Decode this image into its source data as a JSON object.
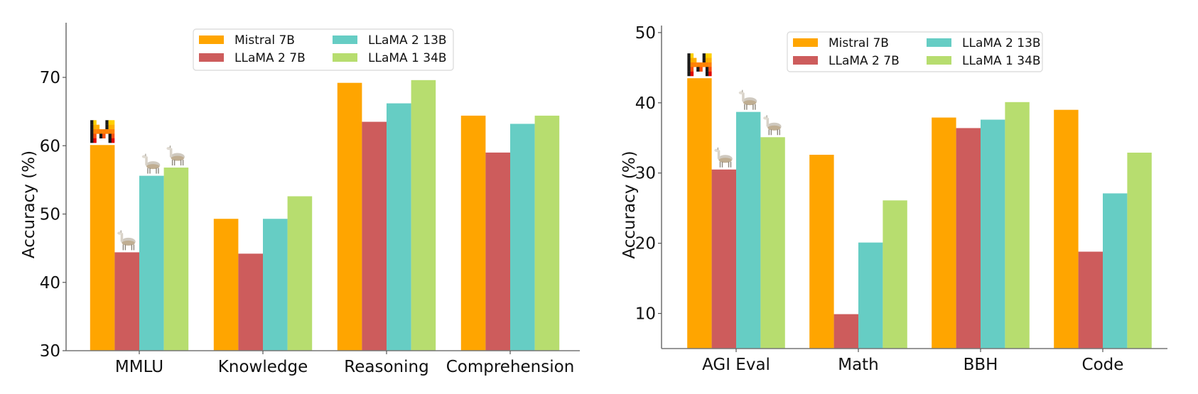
{
  "chart_data": [
    {
      "type": "bar",
      "title": "",
      "xlabel": "",
      "ylabel": "Accuracy (%)",
      "ylim": [
        30,
        78
      ],
      "yticks": [
        30,
        40,
        50,
        60,
        70
      ],
      "grid": false,
      "legend_position": "top-center",
      "categories": [
        "MMLU",
        "Knowledge",
        "Reasoning",
        "Comprehension"
      ],
      "series": [
        {
          "name": "Mistral 7B",
          "color": "#FFA500",
          "values": [
            60.1,
            49.3,
            69.2,
            64.4
          ]
        },
        {
          "name": "LLaMA 2 7B",
          "color": "#CD5C5C",
          "values": [
            44.4,
            44.2,
            63.5,
            59.0
          ]
        },
        {
          "name": "LLaMA 2 13B",
          "color": "#66CDC4",
          "values": [
            55.6,
            49.3,
            66.2,
            63.2
          ]
        },
        {
          "name": "LLaMA 1 34B",
          "color": "#B7DD6F",
          "values": [
            56.8,
            52.6,
            69.6,
            64.4
          ]
        }
      ],
      "annotations": [
        {
          "category": "MMLU",
          "series": "Mistral 7B",
          "icon": "mistral-logo-icon"
        },
        {
          "category": "MMLU",
          "series": "LLaMA 2 7B",
          "icon": "llama-icon"
        },
        {
          "category": "MMLU",
          "series": "LLaMA 2 13B",
          "icon": "llama-icon"
        },
        {
          "category": "MMLU",
          "series": "LLaMA 1 34B",
          "icon": "llama-icon"
        }
      ]
    },
    {
      "type": "bar",
      "title": "",
      "xlabel": "",
      "ylabel": "Accuracy (%)",
      "ylim": [
        5,
        51
      ],
      "yticks": [
        10,
        20,
        30,
        40,
        50
      ],
      "grid": false,
      "legend_position": "top-center",
      "categories": [
        "AGI Eval",
        "Math",
        "BBH",
        "Code"
      ],
      "series": [
        {
          "name": "Mistral 7B",
          "color": "#FFA500",
          "values": [
            43.5,
            32.6,
            37.9,
            39.0
          ]
        },
        {
          "name": "LLaMA 2 7B",
          "color": "#CD5C5C",
          "values": [
            30.5,
            9.9,
            36.4,
            18.8
          ]
        },
        {
          "name": "LLaMA 2 13B",
          "color": "#66CDC4",
          "values": [
            38.7,
            20.1,
            37.6,
            27.1
          ]
        },
        {
          "name": "LLaMA 1 34B",
          "color": "#B7DD6F",
          "values": [
            35.1,
            26.1,
            40.1,
            32.9
          ]
        }
      ],
      "annotations": [
        {
          "category": "AGI Eval",
          "series": "Mistral 7B",
          "icon": "mistral-logo-icon"
        },
        {
          "category": "AGI Eval",
          "series": "LLaMA 2 7B",
          "icon": "llama-icon"
        },
        {
          "category": "AGI Eval",
          "series": "LLaMA 2 13B",
          "icon": "llama-icon"
        },
        {
          "category": "AGI Eval",
          "series": "LLaMA 1 34B",
          "icon": "llama-icon"
        }
      ]
    }
  ]
}
